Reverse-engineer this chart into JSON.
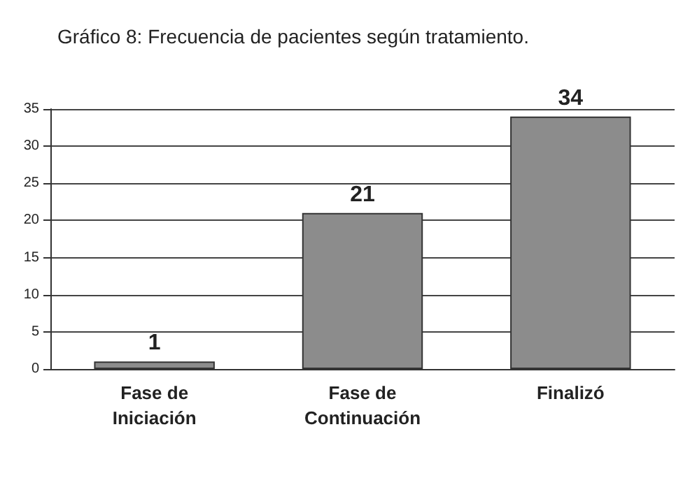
{
  "chart_data": {
    "type": "bar",
    "title": "Gráfico 8: Frecuencia de pacientes según tratamiento.",
    "categories": [
      "Fase de\nIniciación",
      "Fase de\nContinuación",
      "Finalizó"
    ],
    "values": [
      1,
      21,
      34
    ],
    "color": "#8c8c8c",
    "ylim": [
      0,
      35
    ],
    "yticks": [
      0,
      5,
      10,
      15,
      20,
      25,
      30,
      35
    ],
    "grid": "y",
    "data_labels": true
  }
}
